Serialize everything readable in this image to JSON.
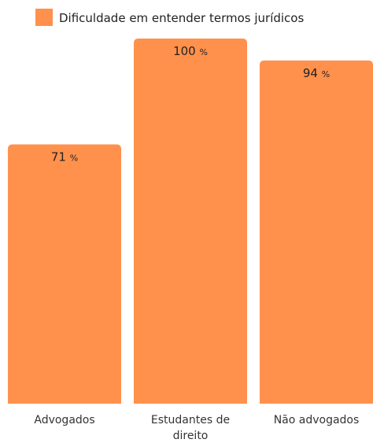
{
  "chart_data": {
    "type": "bar",
    "legend": {
      "position": "top-center",
      "entries": [
        "Dificuldade em entender termos jurídicos"
      ]
    },
    "series": [
      {
        "name": "Dificuldade em entender termos jurídicos",
        "color": "#ff914d",
        "values": [
          71,
          100,
          94
        ]
      }
    ],
    "categories": [
      [
        "Advogados"
      ],
      [
        "Estudantes de",
        "direito"
      ],
      [
        "Não advogados"
      ]
    ],
    "value_unit": "%",
    "ylim": [
      0,
      100
    ],
    "grid": false
  }
}
